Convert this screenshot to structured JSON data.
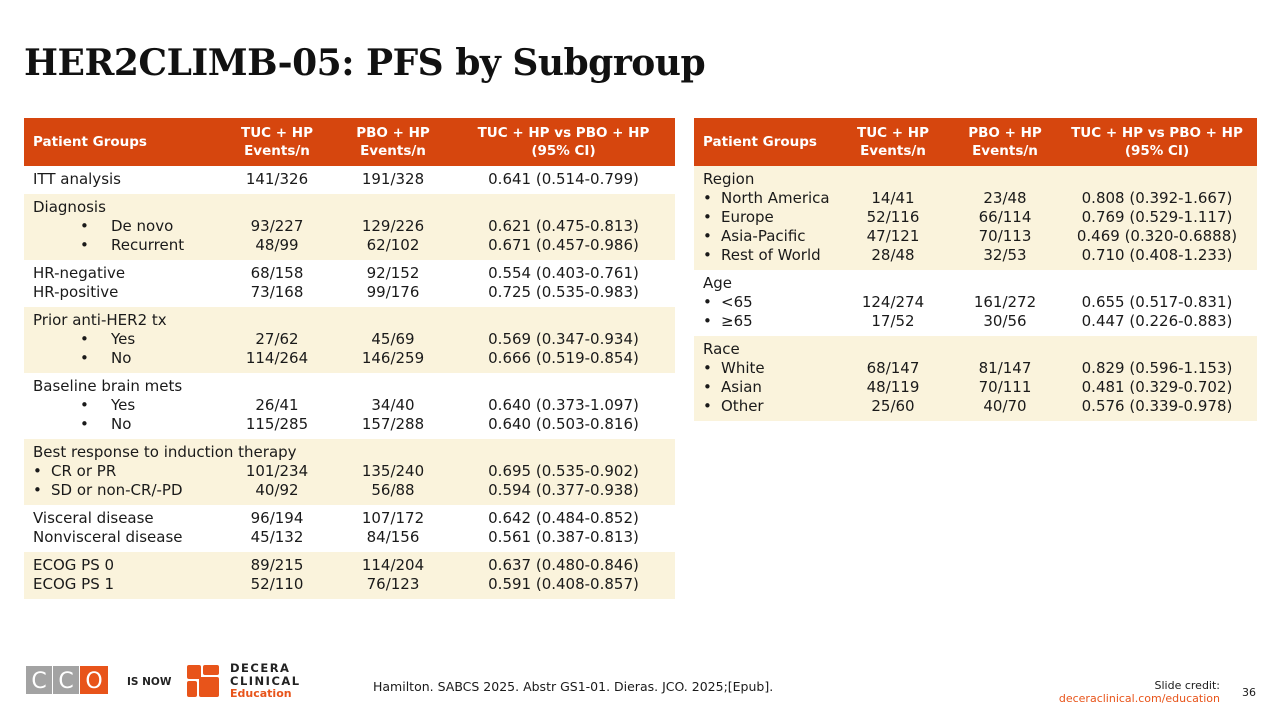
{
  "title": "HER2CLIMB-05: PFS by Subgroup",
  "left_table": {
    "columns": [
      [
        "Patient Groups"
      ],
      [
        "TUC + HP",
        "Events/n"
      ],
      [
        "PBO + HP",
        "Events/n"
      ],
      [
        "TUC + HP vs PBO + HP",
        "(95% CI)"
      ]
    ],
    "band_colors": [
      "#ffffff",
      "#faf3dc"
    ],
    "groups": [
      {
        "rows": [
          {
            "label": "ITT analysis",
            "tuc": "141/326",
            "pbo": "191/328",
            "hr": "0.641 (0.514-0.799)"
          }
        ]
      },
      {
        "heading": "Diagnosis",
        "bullets": "indented",
        "rows": [
          {
            "label": "De novo",
            "tuc": "93/227",
            "pbo": "129/226",
            "hr": "0.621 (0.475-0.813)"
          },
          {
            "label": "Recurrent",
            "tuc": "48/99",
            "pbo": "62/102",
            "hr": "0.671 (0.457-0.986)"
          }
        ]
      },
      {
        "rows": [
          {
            "label": "HR-negative",
            "tuc": "68/158",
            "pbo": "92/152",
            "hr": "0.554 (0.403-0.761)"
          },
          {
            "label": "HR-positive",
            "tuc": "73/168",
            "pbo": "99/176",
            "hr": "0.725 (0.535-0.983)"
          }
        ]
      },
      {
        "heading": "Prior anti-HER2 tx",
        "bullets": "indented",
        "rows": [
          {
            "label": "Yes",
            "tuc": "27/62",
            "pbo": "45/69",
            "hr": "0.569 (0.347-0.934)"
          },
          {
            "label": "No",
            "tuc": "114/264",
            "pbo": "146/259",
            "hr": "0.666 (0.519-0.854)"
          }
        ]
      },
      {
        "heading": "Baseline brain mets",
        "bullets": "indented",
        "rows": [
          {
            "label": "Yes",
            "tuc": "26/41",
            "pbo": "34/40",
            "hr": "0.640 (0.373-1.097)"
          },
          {
            "label": "No",
            "tuc": "115/285",
            "pbo": "157/288",
            "hr": "0.640 (0.503-0.816)"
          }
        ]
      },
      {
        "heading": "Best response to induction therapy",
        "bullets": "inline",
        "rows": [
          {
            "label": "CR or PR",
            "tuc": "101/234",
            "pbo": "135/240",
            "hr": "0.695 (0.535-0.902)"
          },
          {
            "label": "SD or non-CR/-PD",
            "tuc": "40/92",
            "pbo": "56/88",
            "hr": "0.594 (0.377-0.938)"
          }
        ]
      },
      {
        "rows": [
          {
            "label": "Visceral disease",
            "tuc": "96/194",
            "pbo": "107/172",
            "hr": "0.642 (0.484-0.852)"
          },
          {
            "label": "Nonvisceral disease",
            "tuc": "45/132",
            "pbo": "84/156",
            "hr": "0.561 (0.387-0.813)"
          }
        ]
      },
      {
        "rows": [
          {
            "label": "ECOG PS 0",
            "tuc": "89/215",
            "pbo": "114/204",
            "hr": "0.637 (0.480-0.846)"
          },
          {
            "label": "ECOG PS 1",
            "tuc": "52/110",
            "pbo": "76/123",
            "hr": "0.591 (0.408-0.857)"
          }
        ]
      }
    ]
  },
  "right_table": {
    "columns": [
      [
        "Patient Groups"
      ],
      [
        "TUC + HP",
        "Events/n"
      ],
      [
        "PBO + HP",
        "Events/n"
      ],
      [
        "TUC + HP vs PBO + HP",
        "(95% CI)"
      ]
    ],
    "band_colors": [
      "#faf3dc",
      "#ffffff"
    ],
    "groups": [
      {
        "heading": "Region",
        "bullets": "inline",
        "rows": [
          {
            "label": "North America",
            "tuc": "14/41",
            "pbo": "23/48",
            "hr": "0.808 (0.392-1.667)"
          },
          {
            "label": "Europe",
            "tuc": "52/116",
            "pbo": "66/114",
            "hr": "0.769 (0.529-1.117)"
          },
          {
            "label": "Asia-Pacific",
            "tuc": "47/121",
            "pbo": "70/113",
            "hr": "0.469 (0.320-0.6888)"
          },
          {
            "label": "Rest of World",
            "tuc": "28/48",
            "pbo": "32/53",
            "hr": "0.710 (0.408-1.233)"
          }
        ]
      },
      {
        "heading": "Age",
        "bullets": "inline",
        "rows": [
          {
            "label": "<65",
            "tuc": "124/274",
            "pbo": "161/272",
            "hr": "0.655 (0.517-0.831)"
          },
          {
            "label": "≥65",
            "tuc": "17/52",
            "pbo": "30/56",
            "hr": "0.447 (0.226-0.883)"
          }
        ]
      },
      {
        "heading": "Race",
        "bullets": "inline",
        "rows": [
          {
            "label": "White",
            "tuc": "68/147",
            "pbo": "81/147",
            "hr": "0.829 (0.596-1.153)"
          },
          {
            "label": "Asian",
            "tuc": "48/119",
            "pbo": "70/111",
            "hr": "0.481 (0.329-0.702)"
          },
          {
            "label": "Other",
            "tuc": "25/60",
            "pbo": "40/70",
            "hr": "0.576 (0.339-0.978)"
          }
        ]
      }
    ]
  },
  "footer": {
    "cco_letters": [
      "C",
      "C",
      "O"
    ],
    "is_now": "IS NOW",
    "decera": [
      "DECERA",
      "CLINICAL",
      "Education"
    ],
    "reference": "Hamilton. SABCS 2025. Abstr GS1-01. Dieras. JCO. 2025;[Epub].",
    "credit_label": "Slide credit:",
    "credit_link": "deceraclinical.com/education",
    "page": "36"
  }
}
